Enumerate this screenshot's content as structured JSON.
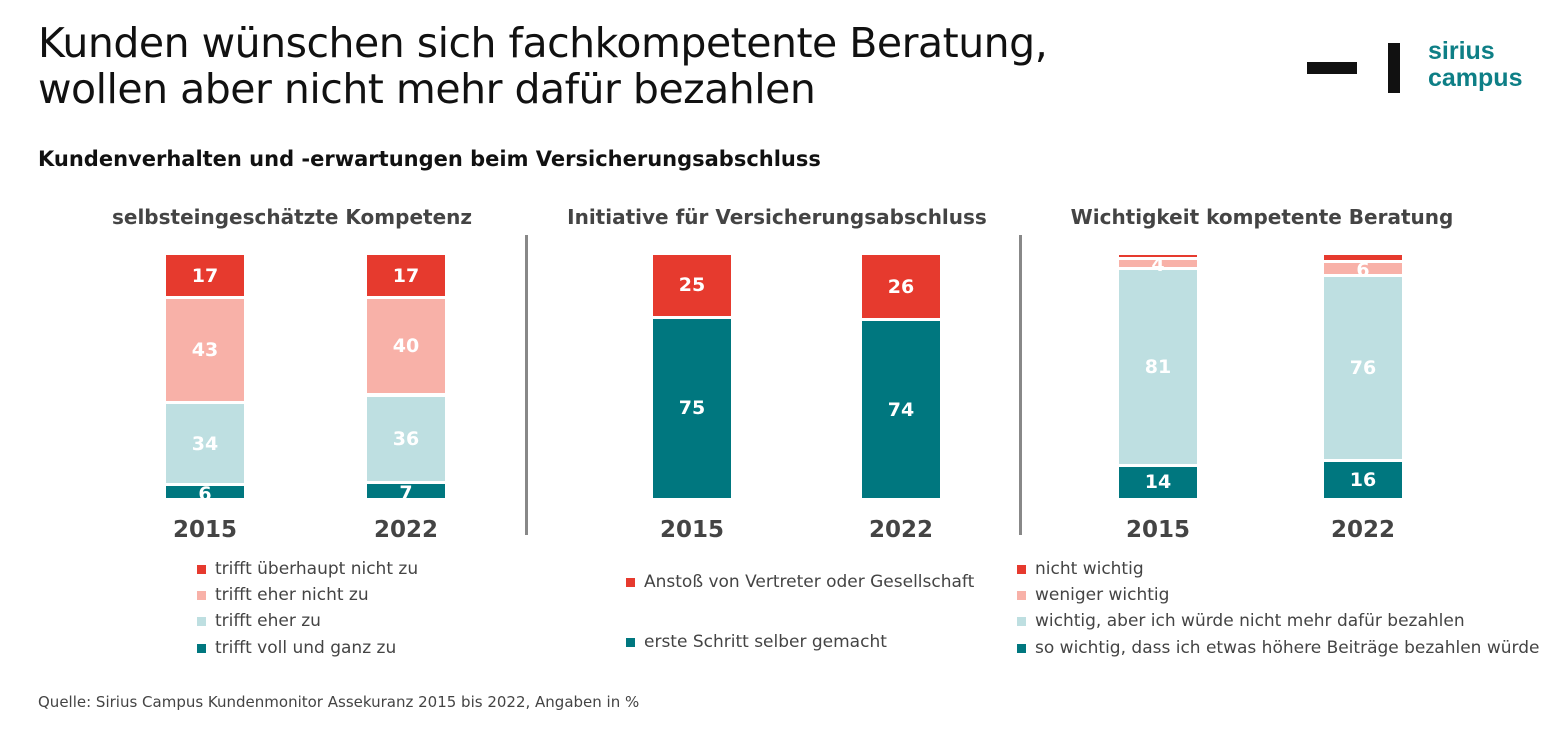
{
  "title_line1": "Kunden wünschen sich fachkompetente Beratung,",
  "title_line2": "wollen aber nicht mehr dafür bezahlen",
  "logo": {
    "line1": "sirius",
    "line2": "campus"
  },
  "subtitle": "Kundenverhalten und -erwartungen beim Versicherungsabschluss",
  "source": "Quelle: Sirius Campus Kundenmonitor Assekuranz 2015 bis 2022, Angaben in %",
  "colors": {
    "red": "#e63a2e",
    "pink": "#f8b1a8",
    "light": "#bedfe1",
    "teal": "#00777f"
  },
  "chart_data": [
    {
      "type": "stacked-bar",
      "title": "selbsteingeschätzte Kompetenz",
      "categories": [
        "2015",
        "2022"
      ],
      "series": [
        {
          "name": "trifft voll und ganz zu",
          "color": "#00777f",
          "values": [
            6,
            7
          ]
        },
        {
          "name": "trifft eher zu",
          "color": "#bedfe1",
          "values": [
            34,
            36
          ]
        },
        {
          "name": "trifft eher nicht zu",
          "color": "#f8b1a8",
          "values": [
            43,
            40
          ]
        },
        {
          "name": "trifft überhaupt nicht zu",
          "color": "#e63a2e",
          "values": [
            17,
            17
          ]
        }
      ]
    },
    {
      "type": "stacked-bar",
      "title": "Initiative für Versicherungsabschluss",
      "categories": [
        "2015",
        "2022"
      ],
      "series": [
        {
          "name": "erste Schritt selber gemacht",
          "color": "#00777f",
          "values": [
            75,
            74
          ]
        },
        {
          "name": "Anstoß von Vertreter oder Gesellschaft",
          "color": "#e63a2e",
          "values": [
            25,
            26
          ]
        }
      ]
    },
    {
      "type": "stacked-bar",
      "title": "Wichtigkeit kompetente Beratung",
      "categories": [
        "2015",
        "2022"
      ],
      "series": [
        {
          "name": "so wichtig, dass ich etwas höhere Beiträge bezahlen würde",
          "color": "#00777f",
          "values": [
            14,
            16
          ]
        },
        {
          "name": "wichtig, aber ich würde nicht mehr dafür bezahlen",
          "color": "#bedfe1",
          "values": [
            81,
            76
          ]
        },
        {
          "name": "weniger wichtig",
          "color": "#f8b1a8",
          "values": [
            4,
            6
          ]
        },
        {
          "name": "nicht wichtig",
          "color": "#e63a2e",
          "values": [
            1,
            2
          ]
        }
      ]
    }
  ]
}
